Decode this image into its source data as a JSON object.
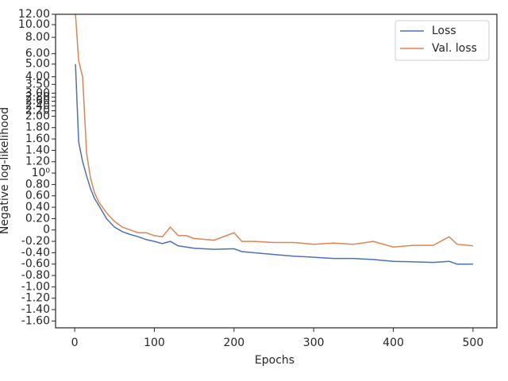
{
  "chart_data": {
    "type": "line",
    "xlabel": "Epochs",
    "ylabel": "Negative log-likelihood",
    "x": [
      1,
      5,
      10,
      15,
      20,
      25,
      30,
      40,
      50,
      60,
      70,
      80,
      90,
      100,
      110,
      120,
      130,
      140,
      150,
      175,
      200,
      210,
      225,
      250,
      275,
      300,
      325,
      350,
      375,
      400,
      425,
      450,
      470,
      480,
      500
    ],
    "series": [
      {
        "name": "Loss",
        "color": "#4c72b0",
        "values": [
          5.0,
          1.55,
          1.2,
          0.95,
          0.72,
          0.55,
          0.44,
          0.2,
          0.05,
          -0.03,
          -0.08,
          -0.12,
          -0.17,
          -0.2,
          -0.24,
          -0.2,
          -0.28,
          -0.3,
          -0.32,
          -0.34,
          -0.33,
          -0.38,
          -0.4,
          -0.43,
          -0.46,
          -0.48,
          -0.5,
          -0.5,
          -0.52,
          -0.55,
          -0.56,
          -0.57,
          -0.55,
          -0.6,
          -0.6
        ]
      },
      {
        "name": "Val. loss",
        "color": "#dd8452",
        "values": [
          12.0,
          5.3,
          4.0,
          1.35,
          0.9,
          0.65,
          0.5,
          0.3,
          0.15,
          0.05,
          0.0,
          -0.05,
          -0.05,
          -0.1,
          -0.12,
          0.05,
          -0.1,
          -0.1,
          -0.15,
          -0.18,
          -0.05,
          -0.2,
          -0.2,
          -0.22,
          -0.22,
          -0.25,
          -0.23,
          -0.25,
          -0.2,
          -0.3,
          -0.27,
          -0.27,
          -0.12,
          -0.25,
          -0.28
        ]
      }
    ],
    "xlim": [
      -24,
      530
    ],
    "xticks": [
      0,
      100,
      200,
      300,
      400,
      500
    ],
    "ylim": [
      -1.72,
      12.0
    ],
    "yscale": "symlog",
    "ylinthresh": 2,
    "yticks": [
      {
        "value": -1.6,
        "label": "-1.60"
      },
      {
        "value": -1.4,
        "label": "-1.40"
      },
      {
        "value": -1.2,
        "label": "-1.20"
      },
      {
        "value": -1.0,
        "label": "-1.00"
      },
      {
        "value": -0.8,
        "label": "-0.80"
      },
      {
        "value": -0.6,
        "label": "-0.60"
      },
      {
        "value": -0.4,
        "label": "-0.40"
      },
      {
        "value": -0.2,
        "label": "-0.20"
      },
      0,
      {
        "value": 0.2,
        "label": "0.20"
      },
      {
        "value": 0.4,
        "label": "0.40"
      },
      {
        "value": 0.6,
        "label": "0.60"
      },
      {
        "value": 0.8,
        "label": "0.80"
      },
      {
        "value": 1,
        "label": "10⁰"
      },
      {
        "value": 1.2,
        "label": "1.20"
      },
      {
        "value": 1.4,
        "label": "1.40"
      },
      {
        "value": 1.6,
        "label": "1.60"
      },
      {
        "value": 1.8,
        "label": "1.80"
      },
      {
        "value": 2.0,
        "label": "2.00"
      },
      {
        "value": 2.2,
        "label": "2.20"
      },
      {
        "value": 2.4,
        "label": "2.40"
      },
      {
        "value": 2.6,
        "label": "2.60"
      },
      {
        "value": 2.8,
        "label": "2.80"
      },
      {
        "value": 3.0,
        "label": "3.00"
      },
      {
        "value": 3.5,
        "label": "3.50"
      },
      {
        "value": 4.0,
        "label": "4.00"
      },
      {
        "value": 5.0,
        "label": "5.00"
      },
      {
        "value": 6.0,
        "label": "6.00"
      },
      {
        "value": 8.0,
        "label": "8.00"
      },
      {
        "value": 10.0,
        "label": "10.00"
      },
      {
        "value": 12.0,
        "label": "12.00"
      }
    ],
    "legend": "upper right"
  }
}
